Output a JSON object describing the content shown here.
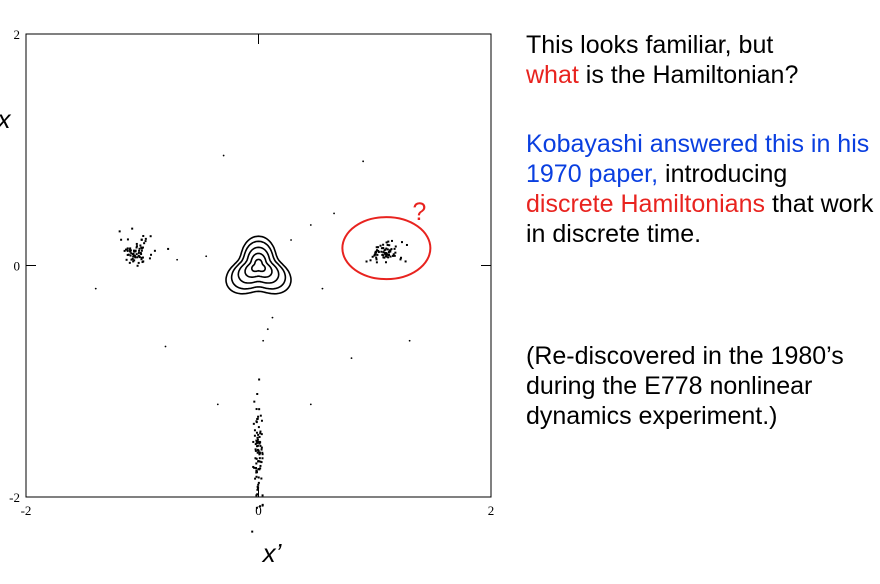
{
  "chart_data": {
    "type": "scatter",
    "title": "",
    "xlabel": "x’",
    "ylabel": "x",
    "xlim": [
      -2,
      2
    ],
    "ylim": [
      -2,
      2
    ],
    "xticks": [
      "-2",
      "0",
      "2"
    ],
    "yticks": [
      "-2",
      "0",
      "2"
    ],
    "grid": false,
    "legend": "none",
    "point_color": "#000000",
    "annotation": {
      "label": "?",
      "color": "#e8231f",
      "center": [
        1.1,
        0.15
      ]
    },
    "islands": [
      {
        "center": [
          -1.05,
          0.12
        ],
        "spread": [
          0.07,
          0.06
        ],
        "count": 70
      },
      {
        "center": [
          1.08,
          0.11
        ],
        "spread": [
          0.08,
          0.05
        ],
        "count": 70
      },
      {
        "center": [
          0.0,
          -1.6
        ],
        "spread": [
          0.02,
          0.2
        ],
        "count": 90
      }
    ],
    "stray_points": [
      [
        -0.3,
        0.95
      ],
      [
        0.9,
        0.9
      ],
      [
        0.65,
        0.45
      ],
      [
        0.45,
        0.35
      ],
      [
        0.28,
        0.22
      ],
      [
        -0.45,
        0.08
      ],
      [
        -0.7,
        0.05
      ],
      [
        -1.4,
        -0.2
      ],
      [
        -0.8,
        -0.7
      ],
      [
        -0.35,
        -1.2
      ],
      [
        0.45,
        -1.2
      ],
      [
        0.8,
        -0.8
      ],
      [
        1.3,
        -0.65
      ],
      [
        0.55,
        -0.2
      ],
      [
        0.12,
        -0.45
      ],
      [
        0.08,
        -0.55
      ],
      [
        0.04,
        -0.65
      ],
      [
        1.1,
        0.2
      ]
    ]
  },
  "text": {
    "p1a": "This looks familiar, but",
    "p1b": "what",
    "p1c": " is the Hamiltonian?",
    "p2a": "Kobayashi answered this in his 1970 paper,",
    "p2b": " introducing ",
    "p2c": "discrete Hamiltonians",
    "p2d": " that work in discrete time.",
    "p3": "(Re-discovered in the 1980’s during the E778 nonlinear dynamics experiment.)"
  }
}
